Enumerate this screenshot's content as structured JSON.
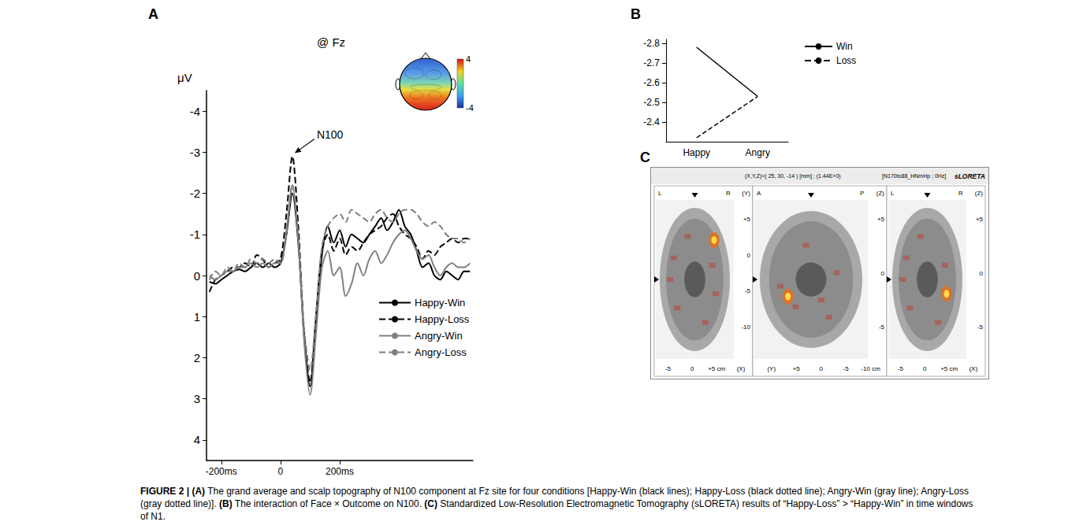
{
  "panel_labels": [
    "A",
    "B",
    "C"
  ],
  "chart_data": [
    {
      "type": "line",
      "title": "@ Fz",
      "y_label": "μV",
      "x": [
        -240,
        -220,
        -200,
        -180,
        -160,
        -140,
        -120,
        -100,
        -80,
        -60,
        -40,
        -20,
        0,
        20,
        40,
        60,
        80,
        100,
        120,
        140,
        160,
        180,
        200,
        220,
        240,
        260,
        280,
        300,
        320,
        340,
        360,
        380,
        400,
        420,
        440,
        460,
        480,
        500,
        520,
        540,
        560,
        580,
        600,
        620,
        640
      ],
      "series": [
        {
          "name": "Happy-Win",
          "color": "#000000",
          "line_style": "solid",
          "values": [
            0.15,
            0.2,
            0.1,
            0.0,
            -0.1,
            -0.15,
            -0.1,
            -0.2,
            -0.3,
            -0.2,
            -0.3,
            -0.2,
            -0.3,
            -1.0,
            -2.0,
            -0.8,
            1.5,
            2.7,
            1.2,
            -0.5,
            -1.2,
            -0.8,
            -1.1,
            -0.7,
            -1.0,
            -0.9,
            -0.8,
            -1.0,
            -1.2,
            -1.4,
            -1.1,
            -1.3,
            -1.6,
            -1.2,
            -1.0,
            -0.6,
            -0.2,
            -0.3,
            0.0,
            0.1,
            -0.1,
            0.0,
            0.1,
            -0.1,
            -0.1
          ]
        },
        {
          "name": "Happy-Loss",
          "color": "#000000",
          "line_style": "dashed",
          "values": [
            0.4,
            0.1,
            0.0,
            -0.1,
            -0.2,
            -0.2,
            -0.3,
            -0.2,
            -0.5,
            -0.4,
            -0.2,
            -0.3,
            -0.4,
            -1.5,
            -2.9,
            -1.2,
            1.4,
            2.6,
            1.0,
            -0.6,
            -1.0,
            -0.6,
            -0.9,
            -0.5,
            -0.7,
            -0.6,
            -0.8,
            -1.0,
            -1.1,
            -1.2,
            -1.4,
            -1.5,
            -1.2,
            -1.0,
            -0.9,
            -0.7,
            -0.4,
            -0.6,
            -0.5,
            -0.7,
            -0.8,
            -0.9,
            -0.8,
            -0.9,
            -0.9
          ]
        },
        {
          "name": "Angry-Win",
          "color": "#808080",
          "line_style": "solid",
          "values": [
            0.0,
            0.1,
            0.0,
            -0.1,
            -0.1,
            -0.2,
            -0.2,
            -0.3,
            -0.2,
            -0.3,
            -0.2,
            -0.3,
            -0.3,
            -1.1,
            -2.2,
            -0.9,
            1.6,
            2.9,
            1.4,
            -0.2,
            -0.6,
            0.0,
            -0.2,
            0.5,
            0.2,
            -0.3,
            0.0,
            -0.4,
            -0.6,
            -0.3,
            -0.5,
            -0.8,
            -1.0,
            -1.1,
            -0.9,
            -0.6,
            -0.4,
            -0.5,
            -0.2,
            0.0,
            -0.2,
            -0.3,
            -0.2,
            -0.2,
            -0.3
          ]
        },
        {
          "name": "Angry-Loss",
          "color": "#808080",
          "line_style": "dashed",
          "values": [
            0.1,
            -0.1,
            0.0,
            -0.2,
            -0.1,
            -0.3,
            -0.2,
            -0.4,
            -0.3,
            -0.4,
            -0.3,
            -0.4,
            -0.3,
            -1.0,
            -2.2,
            -0.8,
            1.3,
            2.3,
            0.9,
            -0.7,
            -1.2,
            -1.4,
            -1.5,
            -1.3,
            -1.6,
            -1.5,
            -1.4,
            -1.3,
            -1.5,
            -1.6,
            -1.4,
            -1.3,
            -1.5,
            -1.6,
            -1.6,
            -1.5,
            -1.3,
            -1.2,
            -1.3,
            -1.2,
            -1.0,
            -0.9,
            -0.9,
            -0.8,
            -0.9
          ]
        }
      ],
      "xlim": [
        -250,
        650
      ],
      "xticks": [
        {
          "value": -200,
          "label": "-200ms"
        },
        0,
        {
          "value": 200,
          "label": "200ms"
        }
      ],
      "ylim": [
        4.5,
        -4.5
      ],
      "yticks": [
        -4,
        -3,
        -2,
        -1,
        0,
        1,
        2,
        3,
        4
      ],
      "grid": false,
      "legend": "right",
      "annotations": [
        {
          "text": "N100",
          "x": 40,
          "y": -2.9
        }
      ]
    },
    {
      "type": "line",
      "categories": [
        "Happy",
        "Angry"
      ],
      "series": [
        {
          "name": "Win",
          "color": "#000000",
          "line_style": "solid",
          "values": [
            -2.78,
            -2.53
          ]
        },
        {
          "name": "Loss",
          "color": "#000000",
          "line_style": "dashed",
          "values": [
            -2.32,
            -2.53
          ]
        }
      ],
      "ylim": [
        -2.3,
        -2.82
      ],
      "yticks": [
        -2.8,
        -2.7,
        -2.6,
        -2.5,
        -2.4
      ],
      "grid": false,
      "legend": "upper right"
    }
  ],
  "topography": {
    "colorbar": {
      "range": [
        -4,
        4
      ],
      "ticks": [
        4,
        -4
      ]
    }
  },
  "panel_c": {
    "header": {
      "coordinates": "(X,Y,Z)=( 25, 30, -14 ) [mm] ; (1.44E+0)",
      "source": "[N170to88_HNmHp ; 0Hz]",
      "method": "sLORETA"
    },
    "views": [
      {
        "top": [
          "L",
          "R"
        ],
        "right": [
          "(Y)",
          "+5",
          "0",
          "-5",
          "-10"
        ],
        "bottom": [
          "-5",
          "0",
          "+5 cm",
          "(X)"
        ]
      },
      {
        "top": [
          "A",
          "P"
        ],
        "right": [
          "(Z)",
          "+5",
          "0",
          "-5"
        ],
        "bottom": [
          "(Y)",
          "+5",
          "0",
          "-5",
          "-10 cm"
        ]
      },
      {
        "top": [
          "L",
          "R"
        ],
        "right": [
          "(Z)",
          "+5",
          "0",
          "-5"
        ],
        "bottom": [
          "-5",
          "0",
          "+5 cm",
          "(X)"
        ]
      }
    ]
  },
  "caption": {
    "figure": "FIGURE 2 |",
    "items": [
      {
        "label": "(A)",
        "text": "The grand average and scalp topography of N100 component at Fz site for four conditions [Happy-Win (black lines); Happy-Loss (black dotted line); Angry-Win (gray line); Angry-Loss (gray dotted line)]."
      },
      {
        "label": "(B)",
        "text": "The interaction of Face × Outcome on N100."
      },
      {
        "label": "(C)",
        "text": "Standardized Low-Resolution Electromagnetic Tomography (sLORETA) results of “Happy-Loss” > “Happy-Win” in time windows of N1."
      }
    ]
  }
}
